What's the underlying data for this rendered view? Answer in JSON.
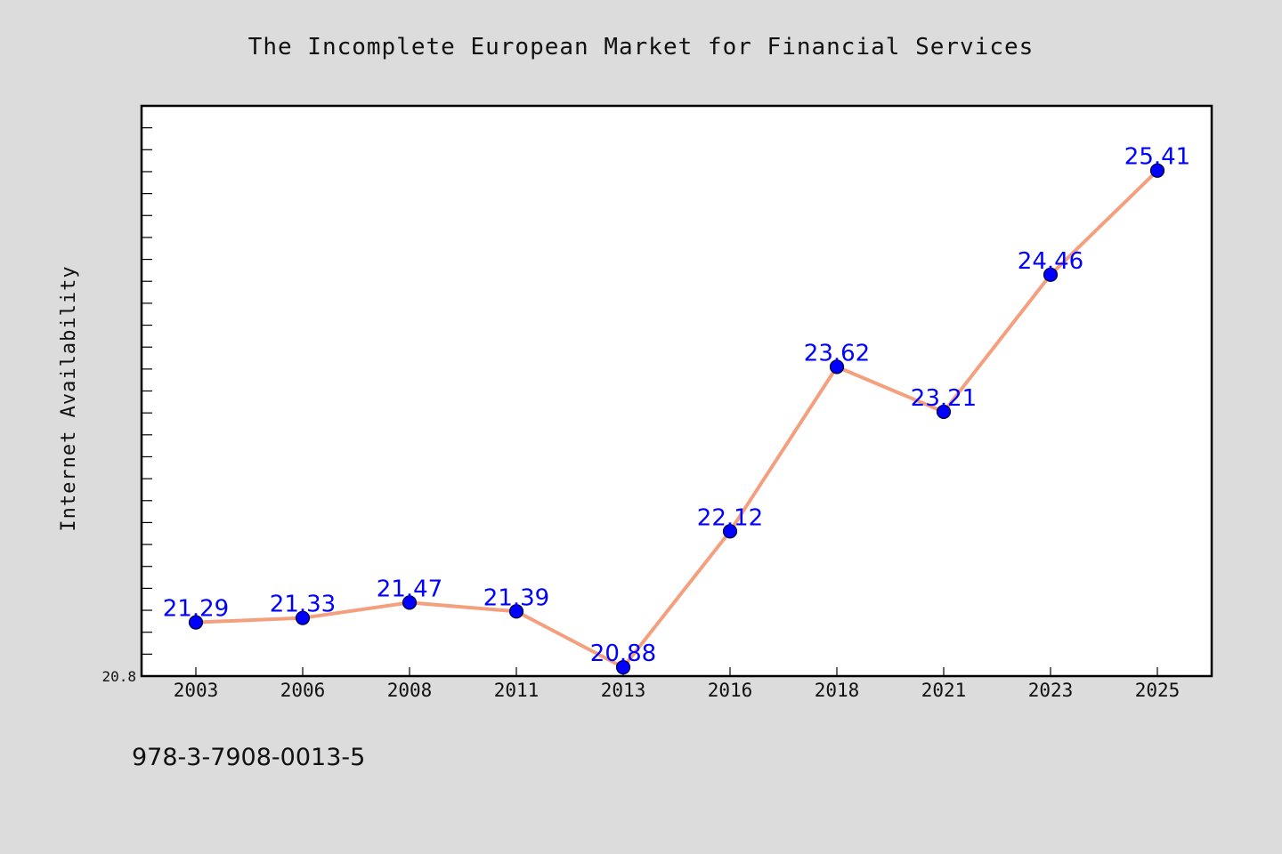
{
  "chart_data": {
    "type": "line",
    "title": "The Incomplete European Market for Financial Services",
    "xlabel": "",
    "ylabel": "Internet Availability",
    "categories": [
      "2003",
      "2006",
      "2008",
      "2011",
      "2013",
      "2016",
      "2018",
      "2021",
      "2023",
      "2025"
    ],
    "values": [
      21.29,
      21.33,
      21.47,
      21.39,
      20.88,
      22.12,
      23.62,
      23.21,
      24.46,
      25.41
    ],
    "value_labels": [
      "21.29",
      "21.33",
      "21.47",
      "21.39",
      "20.88",
      "22.12",
      "23.62",
      "23.21",
      "24.46",
      "25.41"
    ],
    "ylim": [
      20.8,
      26.0
    ],
    "ymin_label": "20.8",
    "grid": false,
    "legend": "none",
    "colors": {
      "line": "#f4a07f",
      "marker": "#0000ff",
      "marker_edge": "#000033",
      "data_label": "#0000ff",
      "background": "#dcdcdc",
      "plot_background": "#ffffff"
    }
  },
  "footer": {
    "isbn": "978-3-7908-0013-5"
  }
}
